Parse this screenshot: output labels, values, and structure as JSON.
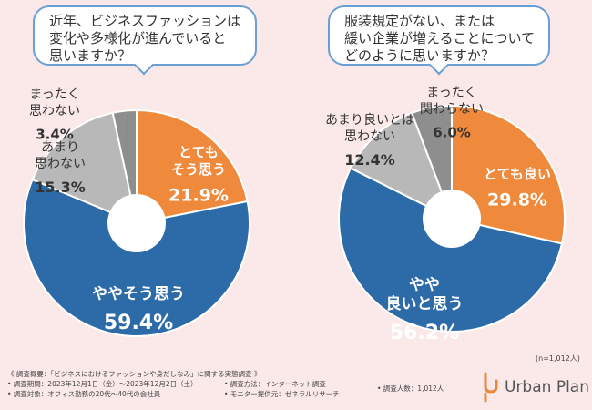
{
  "questions": {
    "left": [
      "近年、ビジネスファッションは",
      "変化や多様化が進んでいると",
      "思いますか？"
    ],
    "right": [
      "服装規定がない、または",
      "緩い企業が増えることについて",
      "どのように思いますか？"
    ]
  },
  "chart_data": [
    {
      "type": "pie",
      "title": "近年、ビジネスファッションは変化や多様化が進んでいると思いますか？",
      "slices": [
        {
          "label_lines": [
            "とても",
            "そう思う"
          ],
          "value": 21.9,
          "value_text": "21.9%",
          "color": "#ef8a3c",
          "text_color": "#ffffff"
        },
        {
          "label_lines": [
            "ややそう思う"
          ],
          "value": 59.4,
          "value_text": "59.4%",
          "color": "#2c6aa8",
          "text_color": "#ffffff"
        },
        {
          "label_lines": [
            "あまり",
            "思わない"
          ],
          "value": 15.3,
          "value_text": "15.3%",
          "color": "#b8b8b8",
          "text_color": "#333333"
        },
        {
          "label_lines": [
            "まったく",
            "思わない"
          ],
          "value": 3.4,
          "value_text": "3.4%",
          "color": "#8e8e8e",
          "text_color": "#333333"
        }
      ]
    },
    {
      "type": "pie",
      "title": "服装規定がない、または緩い企業が増えることについてどのように思いますか？",
      "slices": [
        {
          "label_lines": [
            "とても良い"
          ],
          "value": 29.8,
          "value_text": "29.8%",
          "color": "#ef8a3c",
          "text_color": "#ffffff"
        },
        {
          "label_lines": [
            "やや",
            "良いと思う"
          ],
          "value": 56.2,
          "value_text": "56.2%",
          "color": "#2c6aa8",
          "text_color": "#ffffff"
        },
        {
          "label_lines": [
            "あまり良いとは",
            "思わない"
          ],
          "value": 12.4,
          "value_text": "12.4%",
          "color": "#b8b8b8",
          "text_color": "#333333"
        },
        {
          "label_lines": [
            "まったく",
            "関わらない"
          ],
          "value": 6.0,
          "value_text": "6.0%",
          "color": "#8e8e8e",
          "text_color": "#333333"
        }
      ]
    }
  ],
  "sample": "(n=1,012人)",
  "footer": {
    "col1": [
      "《 調査概要：「ビジネスにおけるファッションや身だしなみ」に関する実態調査 》",
      "• 調査期間：2023年12月1日（金）〜2023年12月2日（土）",
      "• 調査対象：オフィス勤務の20代〜40代の会社員"
    ],
    "col2": [
      "• 調査方法：インターネット調査",
      "• モニター提供元：ゼネラルリサーチ"
    ],
    "col3": "• 調査人数：1,012人"
  },
  "brand": "Urban Plan",
  "colors": {
    "accent": "#6a9fd4",
    "orange": "#ef8a3c",
    "blue": "#2c6aa8"
  }
}
